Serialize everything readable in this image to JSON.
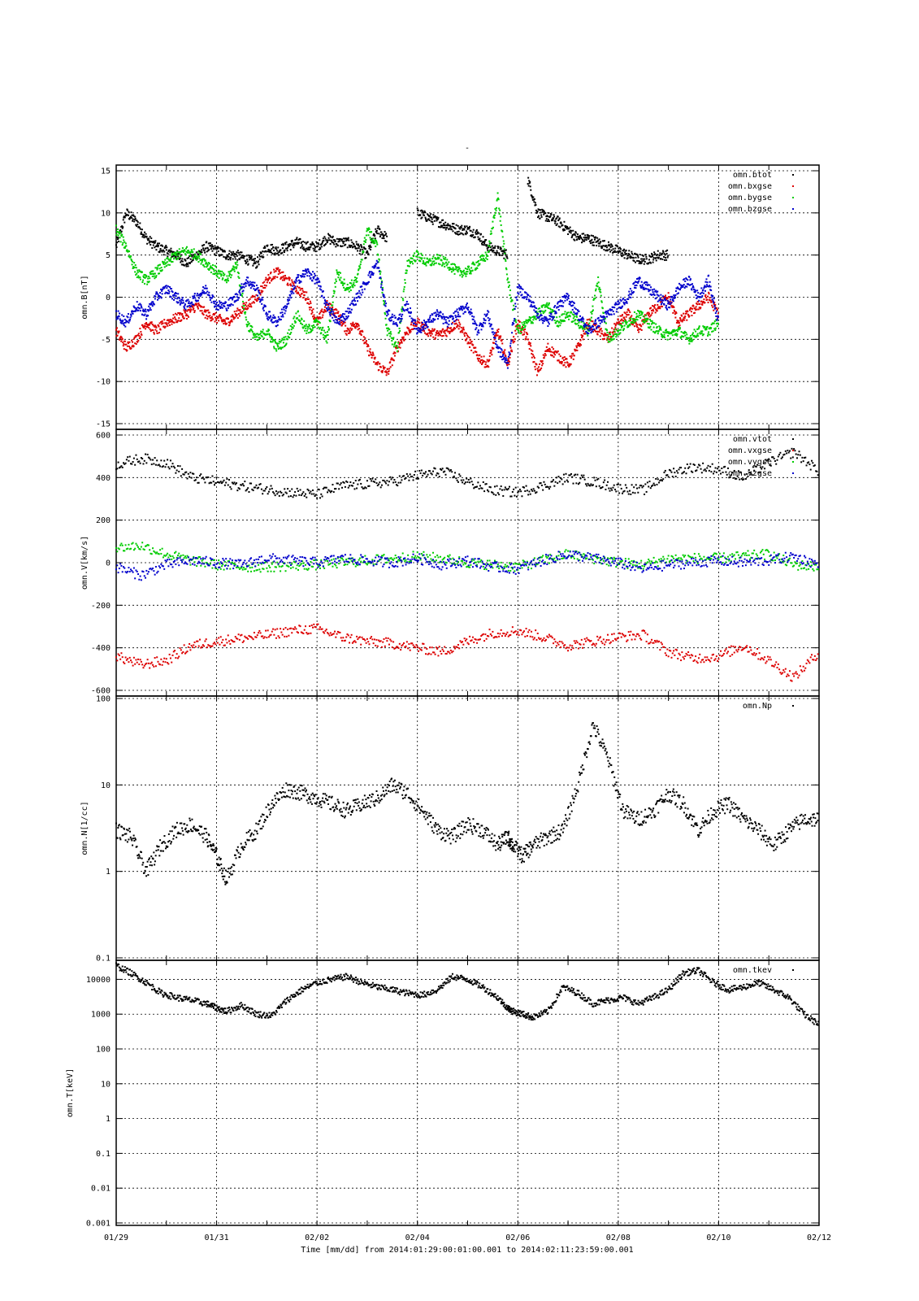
{
  "title": "-",
  "xlabel": "Time [mm/dd]  from 2014:01:29:00:01:00.001  to  2014:02:11:23:59:00.001",
  "x_ticks": [
    "01/29",
    "01/31",
    "02/02",
    "02/04",
    "02/06",
    "02/08",
    "02/10",
    "02/12"
  ],
  "grid": true,
  "colors": {
    "black": "#000000",
    "red": "#dd0000",
    "green": "#00cc00",
    "blue": "#0000cc"
  },
  "chart_data": [
    {
      "type": "scatter",
      "ylabel": "omn.B[nT]",
      "yscale": "linear",
      "ylim": [
        -15,
        15
      ],
      "y_ticks": [
        "-15",
        "-10",
        "-5",
        "0",
        "5",
        "10",
        "15"
      ],
      "xlim_days": [
        0,
        14
      ],
      "legend_position": "top-right",
      "series": [
        {
          "name": "omn.btot",
          "color": "#000000",
          "x": [
            0,
            0.2,
            0.4,
            0.6,
            0.8,
            1.0,
            1.2,
            1.4,
            1.6,
            1.8,
            2.0,
            2.2,
            2.4,
            2.6,
            2.8,
            3.0,
            3.2,
            3.4,
            3.6,
            3.8,
            4.0,
            4.2,
            4.4,
            4.6,
            4.8,
            5.0,
            5.2,
            5.4,
            5.6,
            5.8,
            6.0,
            6.2,
            6.4,
            6.6,
            6.8,
            7.0,
            7.2,
            7.4,
            7.6,
            7.8,
            8.0,
            8.2,
            8.4,
            8.6,
            8.8,
            9.0,
            9.2,
            9.4,
            9.6,
            9.8,
            10.0,
            10.2,
            10.4,
            10.6,
            10.8,
            11.0,
            11.2,
            11.4,
            11.6,
            11.8,
            12.0,
            12.2,
            12.4,
            12.6,
            12.8,
            13.0,
            13.2,
            13.4,
            13.6,
            13.8,
            14.0
          ],
          "y": [
            6,
            10,
            9,
            7,
            6,
            5.5,
            5,
            4,
            5,
            6,
            5.5,
            5,
            5,
            4.5,
            4,
            6,
            5.5,
            6,
            6.5,
            6,
            6,
            7,
            6.5,
            6.5,
            6,
            5,
            8,
            7,
            null,
            null,
            10,
            9.5,
            9,
            8.5,
            8,
            8,
            7.5,
            6,
            5.5,
            5,
            null,
            14,
            10,
            9.5,
            9,
            8,
            7,
            7,
            6.5,
            6,
            5.5,
            5,
            4.5,
            4.5,
            5,
            5,
            null,
            null,
            null,
            null,
            null,
            null,
            null,
            null,
            null,
            null,
            null,
            null,
            null,
            null,
            null
          ]
        },
        {
          "name": "omn.bxgse",
          "color": "#dd0000",
          "x": [
            0,
            0.2,
            0.4,
            0.6,
            0.8,
            1.0,
            1.2,
            1.4,
            1.6,
            1.8,
            2.0,
            2.2,
            2.4,
            2.6,
            2.8,
            3.0,
            3.2,
            3.4,
            3.6,
            3.8,
            4.0,
            4.2,
            4.4,
            4.6,
            4.8,
            5.0,
            5.2,
            5.4,
            5.6,
            5.8,
            6.0,
            6.2,
            6.4,
            6.6,
            6.8,
            7.0,
            7.2,
            7.4,
            7.6,
            7.8,
            8.0,
            8.2,
            8.4,
            8.6,
            8.8,
            9.0,
            9.2,
            9.4,
            9.6,
            9.8,
            10.0,
            10.2,
            10.4,
            10.6,
            10.8,
            11.0,
            11.2,
            11.4,
            11.6,
            11.8,
            12.0
          ],
          "y": [
            -4,
            -6,
            -5,
            -3,
            -4,
            -3,
            -2.5,
            -2,
            -1,
            -2,
            -2.5,
            -3,
            -2,
            -1,
            0,
            2,
            3,
            2,
            1,
            0,
            -3,
            -1,
            -2,
            -4,
            -3,
            -6,
            -8,
            -9,
            -6,
            -4,
            -3,
            -4,
            -4.5,
            -4,
            -3,
            -5,
            -7,
            -8,
            -4,
            -8,
            -3,
            -5,
            -9,
            -6,
            -7,
            -8,
            -6,
            -3,
            -4,
            -5,
            -3,
            -2,
            -4,
            -2,
            -1,
            0,
            -3,
            -2,
            -1,
            0,
            -2
          ]
        },
        {
          "name": "omn.bygse",
          "color": "#00cc00",
          "x": [
            0,
            0.2,
            0.4,
            0.6,
            0.8,
            1.0,
            1.2,
            1.4,
            1.6,
            1.8,
            2.0,
            2.2,
            2.4,
            2.6,
            2.8,
            3.0,
            3.2,
            3.4,
            3.6,
            3.8,
            4.0,
            4.2,
            4.4,
            4.6,
            4.8,
            5.0,
            5.2,
            5.4,
            5.6,
            5.8,
            6.0,
            6.2,
            6.4,
            6.6,
            6.8,
            7.0,
            7.2,
            7.4,
            7.6,
            7.8,
            8.0,
            8.2,
            8.4,
            8.6,
            8.8,
            9.0,
            9.2,
            9.4,
            9.6,
            9.8,
            10.0,
            10.2,
            10.4,
            10.6,
            10.8,
            11.0,
            11.2,
            11.4,
            11.6,
            11.8,
            12.0
          ],
          "y": [
            8,
            6,
            3,
            2,
            3,
            4,
            5,
            5.5,
            5,
            4,
            3,
            2,
            4,
            -3,
            -5,
            -4,
            -6,
            -5,
            -2,
            -4,
            -3,
            -5,
            3,
            1,
            2,
            8,
            6,
            -4,
            -6,
            4,
            5,
            4,
            4.5,
            4,
            3,
            3,
            4,
            5,
            12,
            2,
            -4,
            -3,
            -2,
            -1,
            -3,
            -2,
            -3,
            -4,
            2,
            -5,
            -4,
            -3,
            -2,
            -3,
            -4,
            -4.5,
            -4,
            -5,
            -4,
            -4,
            -3
          ]
        },
        {
          "name": "omn.bzgse",
          "color": "#0000cc",
          "x": [
            0,
            0.2,
            0.4,
            0.6,
            0.8,
            1.0,
            1.2,
            1.4,
            1.6,
            1.8,
            2.0,
            2.2,
            2.4,
            2.6,
            2.8,
            3.0,
            3.2,
            3.4,
            3.6,
            3.8,
            4.0,
            4.2,
            4.4,
            4.6,
            4.8,
            5.0,
            5.2,
            5.4,
            5.6,
            5.8,
            6.0,
            6.2,
            6.4,
            6.6,
            6.8,
            7.0,
            7.2,
            7.4,
            7.6,
            7.8,
            8.0,
            8.2,
            8.4,
            8.6,
            8.8,
            9.0,
            9.2,
            9.4,
            9.6,
            9.8,
            10.0,
            10.2,
            10.4,
            10.6,
            10.8,
            11.0,
            11.2,
            11.4,
            11.6,
            11.8,
            12.0
          ],
          "y": [
            -2,
            -3,
            -1,
            -2,
            0,
            1,
            0,
            -1,
            0,
            1,
            -1,
            -1,
            0,
            2,
            1,
            -2,
            -3,
            -1,
            2,
            3,
            2,
            -1,
            -3,
            -2,
            0,
            2,
            4,
            -2,
            -3,
            -1,
            -4,
            -3,
            -2,
            -3,
            -2,
            -1,
            -4,
            -2,
            -6,
            -8,
            1,
            0,
            -2,
            -3,
            -1,
            0,
            -2,
            -4,
            -3,
            -2,
            -1,
            0,
            2,
            1,
            0,
            -1,
            1,
            2,
            0,
            2,
            -3
          ]
        }
      ]
    },
    {
      "type": "scatter",
      "ylabel": "omn.V[km/s]",
      "yscale": "linear",
      "ylim": [
        -600,
        600
      ],
      "y_ticks": [
        "-600",
        "-400",
        "-200",
        "0",
        "200",
        "400",
        "600"
      ],
      "xlim_days": [
        0,
        14
      ],
      "legend_position": "top-right",
      "series": [
        {
          "name": "omn.vtot",
          "color": "#000000",
          "x": [
            0,
            0.5,
            1.0,
            1.5,
            2.0,
            2.5,
            3.0,
            3.5,
            4.0,
            4.5,
            5.0,
            5.5,
            6.0,
            6.5,
            7.0,
            7.5,
            8.0,
            8.5,
            9.0,
            9.5,
            10.0,
            10.5,
            11.0,
            11.5,
            12.0,
            12.5,
            13.0,
            13.5,
            14.0
          ],
          "y": [
            460,
            490,
            470,
            400,
            380,
            360,
            345,
            330,
            320,
            360,
            370,
            380,
            410,
            430,
            380,
            340,
            330,
            360,
            400,
            380,
            350,
            340,
            420,
            450,
            440,
            400,
            470,
            520,
            430
          ]
        },
        {
          "name": "omn.vxgse",
          "color": "#dd0000",
          "x": [
            0,
            0.5,
            1.0,
            1.5,
            2.0,
            2.5,
            3.0,
            3.5,
            4.0,
            4.5,
            5.0,
            5.5,
            6.0,
            6.5,
            7.0,
            7.5,
            8.0,
            8.5,
            9.0,
            9.5,
            10.0,
            10.5,
            11.0,
            11.5,
            12.0,
            12.5,
            13.0,
            13.5,
            14.0
          ],
          "y": [
            -440,
            -480,
            -460,
            -390,
            -370,
            -355,
            -340,
            -320,
            -310,
            -350,
            -370,
            -380,
            -400,
            -420,
            -370,
            -330,
            -320,
            -350,
            -390,
            -370,
            -350,
            -340,
            -420,
            -450,
            -440,
            -390,
            -460,
            -540,
            -420
          ]
        },
        {
          "name": "omn.vygse",
          "color": "#00cc00",
          "x": [
            0,
            0.5,
            1.0,
            1.5,
            2.0,
            2.5,
            3.0,
            3.5,
            4.0,
            4.5,
            5.0,
            5.5,
            6.0,
            6.5,
            7.0,
            7.5,
            8.0,
            8.5,
            9.0,
            9.5,
            10.0,
            10.5,
            11.0,
            11.5,
            12.0,
            12.5,
            13.0,
            13.5,
            14.0
          ],
          "y": [
            70,
            80,
            40,
            10,
            -10,
            -20,
            -20,
            -15,
            -10,
            0,
            10,
            20,
            30,
            20,
            0,
            -10,
            -20,
            10,
            40,
            20,
            0,
            -10,
            20,
            20,
            20,
            30,
            40,
            -10,
            -20
          ]
        },
        {
          "name": "omn.vzgse",
          "color": "#0000cc",
          "x": [
            0,
            0.5,
            1.0,
            1.5,
            2.0,
            2.5,
            3.0,
            3.5,
            4.0,
            4.5,
            5.0,
            5.5,
            6.0,
            6.5,
            7.0,
            7.5,
            8.0,
            8.5,
            9.0,
            9.5,
            10.0,
            10.5,
            11.0,
            11.5,
            12.0,
            12.5,
            13.0,
            13.5,
            14.0
          ],
          "y": [
            -20,
            -60,
            -10,
            10,
            0,
            -10,
            20,
            10,
            0,
            20,
            10,
            0,
            20,
            -10,
            10,
            -20,
            -30,
            10,
            40,
            20,
            0,
            -30,
            -10,
            0,
            10,
            0,
            10,
            30,
            -10
          ]
        }
      ]
    },
    {
      "type": "scatter",
      "ylabel": "omn.N[1/cc]",
      "yscale": "log",
      "ylim": [
        0.1,
        100
      ],
      "y_ticks": [
        "0.1",
        "1",
        "10",
        "100"
      ],
      "xlim_days": [
        0,
        14
      ],
      "legend_position": "top-right",
      "series": [
        {
          "name": "omn.Np",
          "color": "#000000",
          "x": [
            0,
            0.3,
            0.6,
            0.9,
            1.2,
            1.5,
            1.8,
            2.0,
            2.2,
            2.5,
            2.8,
            3.1,
            3.4,
            3.7,
            4.0,
            4.3,
            4.6,
            4.9,
            5.2,
            5.5,
            5.8,
            6.1,
            6.4,
            6.7,
            7.0,
            7.3,
            7.6,
            7.8,
            7.9,
            8.1,
            8.3,
            8.6,
            8.9,
            9.2,
            9.5,
            9.8,
            10.1,
            10.4,
            10.7,
            11.0,
            11.3,
            11.6,
            11.9,
            12.2,
            12.5,
            12.8,
            13.1,
            13.4,
            13.7,
            14.0
          ],
          "y": [
            3,
            2.5,
            1,
            2,
            3,
            3.5,
            2.5,
            1.5,
            0.8,
            2,
            3,
            6,
            9,
            8,
            7,
            6,
            5,
            6,
            7,
            10,
            8,
            5,
            3,
            2.5,
            3.5,
            3,
            2,
            2.5,
            2,
            1.5,
            2,
            2.5,
            3,
            10,
            50,
            20,
            5,
            4,
            5,
            8,
            6,
            3,
            5,
            6,
            4,
            3,
            2,
            3,
            4,
            4
          ]
        }
      ]
    },
    {
      "type": "scatter",
      "ylabel": "omn.T[keV]",
      "yscale": "log",
      "ylim": [
        0.001,
        30000
      ],
      "y_ticks": [
        "0.001",
        "0.01",
        "0.1",
        "1",
        "10",
        "100",
        "1000",
        "10000"
      ],
      "xlim_days": [
        0,
        14
      ],
      "legend_position": "top-right",
      "series": [
        {
          "name": "omn.tkev",
          "color": "#000000",
          "x": [
            0,
            0.3,
            0.6,
            0.9,
            1.2,
            1.5,
            1.8,
            2.0,
            2.2,
            2.5,
            2.8,
            3.1,
            3.4,
            3.7,
            4.0,
            4.3,
            4.6,
            4.9,
            5.2,
            5.5,
            5.8,
            6.1,
            6.4,
            6.7,
            7.0,
            7.3,
            7.6,
            7.8,
            7.9,
            8.1,
            8.3,
            8.6,
            8.9,
            9.2,
            9.5,
            9.8,
            10.1,
            10.4,
            10.7,
            11.0,
            11.3,
            11.6,
            11.9,
            12.2,
            12.5,
            12.8,
            13.1,
            13.4,
            13.7,
            14.0
          ],
          "y": [
            25000,
            15000,
            8000,
            4000,
            3000,
            2500,
            2000,
            1500,
            1200,
            1800,
            1000,
            900,
            2500,
            5000,
            8000,
            10000,
            12000,
            8000,
            6000,
            5000,
            4000,
            3500,
            5000,
            12000,
            10000,
            6000,
            3000,
            1500,
            1200,
            1000,
            800,
            1200,
            6000,
            4000,
            2000,
            2500,
            3000,
            2000,
            3000,
            5000,
            15000,
            18000,
            8000,
            5000,
            6000,
            8000,
            5000,
            3000,
            1000,
            500
          ]
        }
      ]
    }
  ]
}
